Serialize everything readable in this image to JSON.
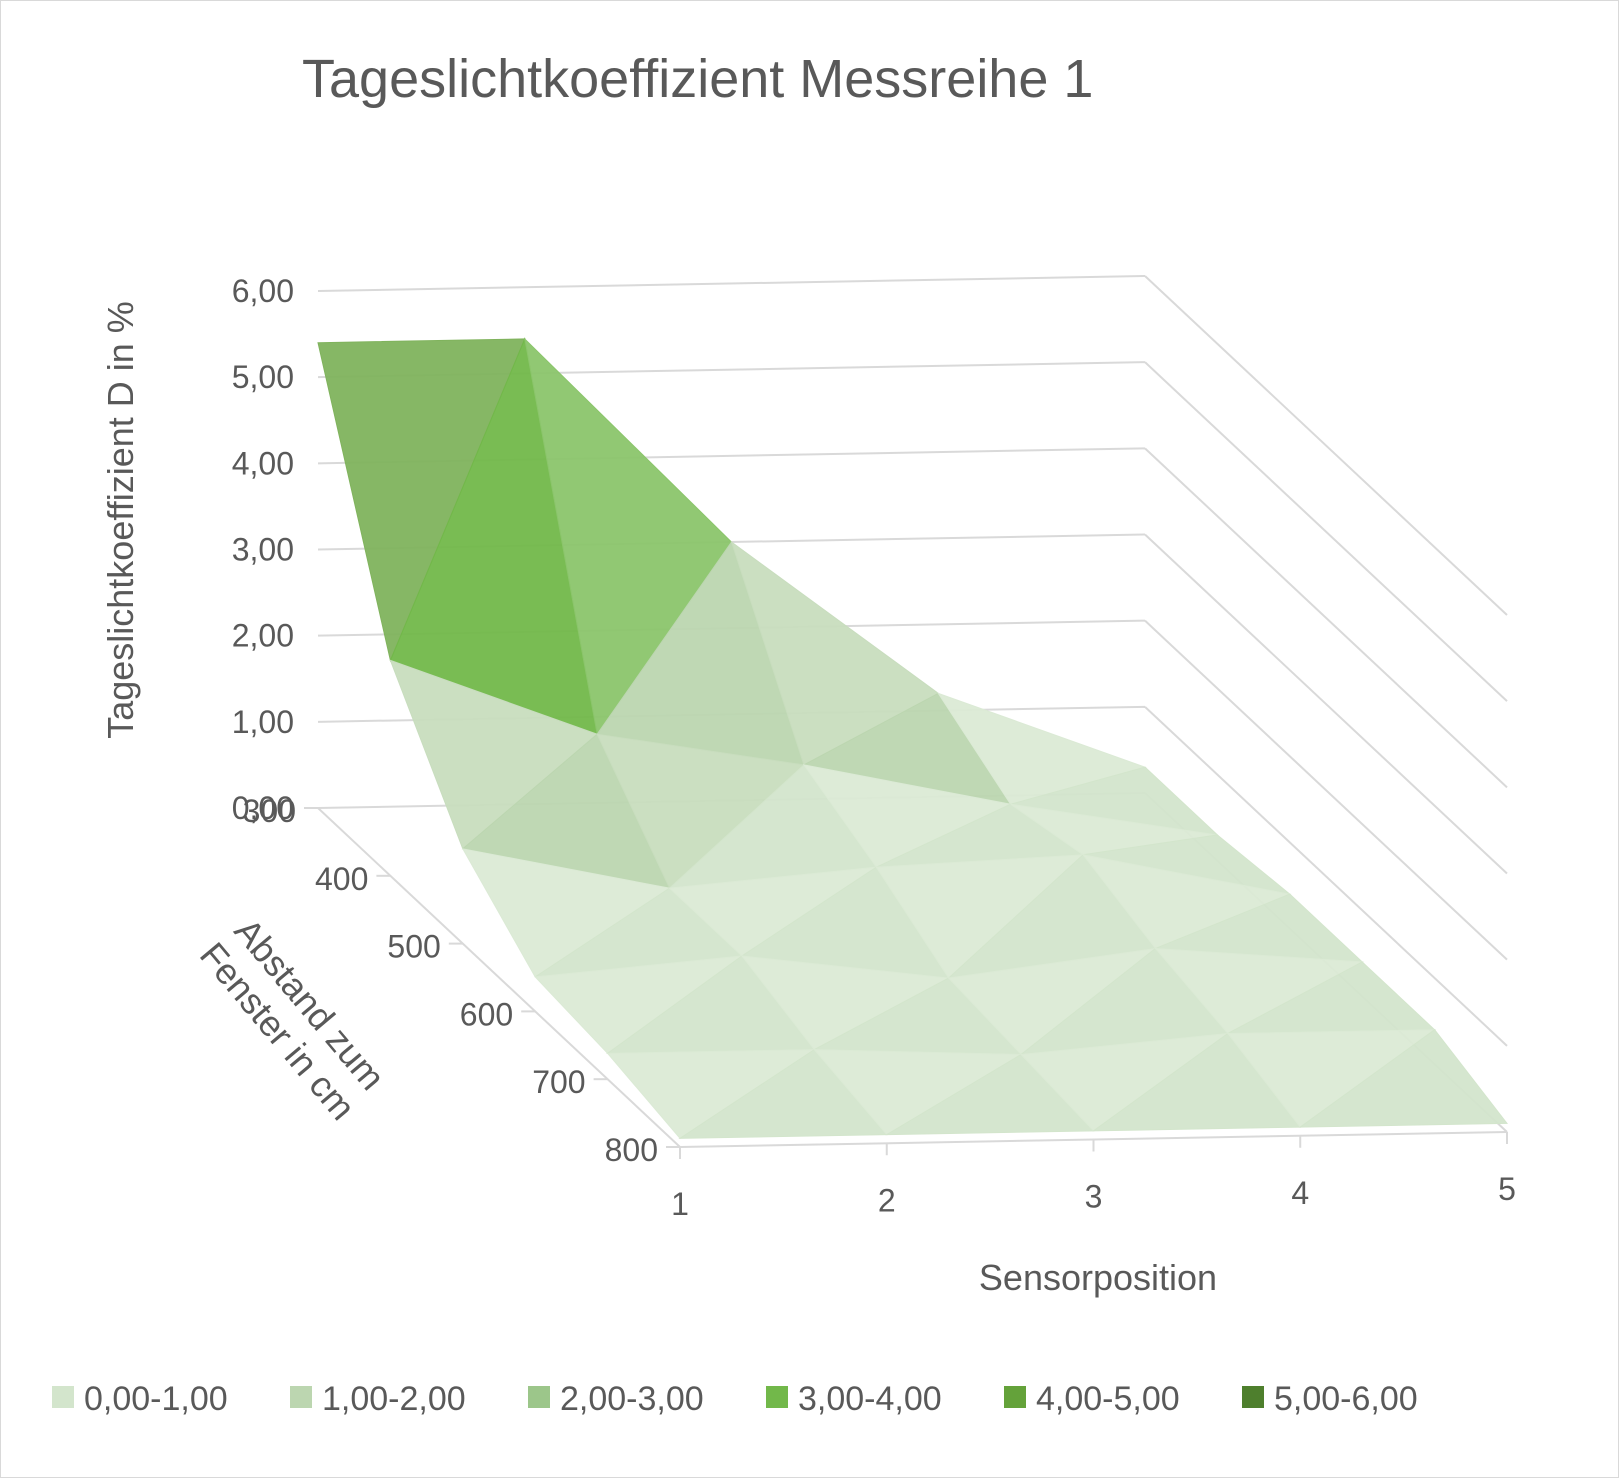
{
  "chart_data": {
    "type": "surface",
    "title": "Tageslichtkoeffizient Messreihe 1",
    "zlabel": "Tageslichtkoeffizient D in %",
    "ylabel": "Abstand zum Fenster in cm",
    "xlabel": "Sensorposition",
    "z_ticks": [
      "0,00",
      "1,00",
      "2,00",
      "3,00",
      "4,00",
      "5,00",
      "6,00"
    ],
    "zlim": [
      0,
      6
    ],
    "x": [
      "1",
      "2",
      "3",
      "4",
      "5"
    ],
    "y": [
      "300",
      "400",
      "500",
      "600",
      "700",
      "800"
    ],
    "values": [
      [
        5.4,
        5.4,
        3.0,
        1.2,
        0.3
      ],
      [
        2.5,
        1.6,
        1.2,
        0.7,
        0.3
      ],
      [
        1.1,
        0.6,
        0.8,
        0.9,
        0.4
      ],
      [
        0.4,
        0.6,
        0.3,
        0.6,
        0.4
      ],
      [
        0.3,
        0.3,
        0.2,
        0.4,
        0.4
      ],
      [
        0.1,
        0.1,
        0.1,
        0.1,
        0.1
      ]
    ],
    "legend": [
      "0,00-1,00",
      "1,00-2,00",
      "2,00-3,00",
      "3,00-4,00",
      "4,00-5,00",
      "5,00-6,00"
    ],
    "legend_colors": [
      "#d3e5cc",
      "#bcd6b0",
      "#9cc68a",
      "#72b84a",
      "#64a23a",
      "#4e7f2d"
    ],
    "legend_position": "bottom"
  }
}
